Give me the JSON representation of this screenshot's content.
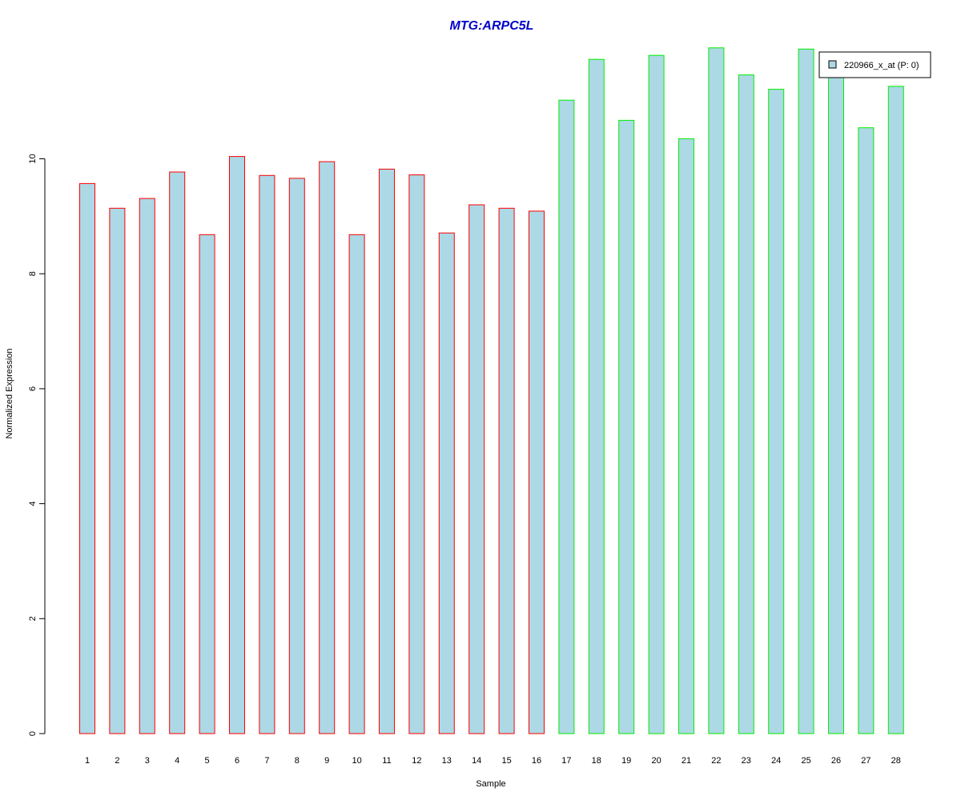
{
  "chart_data": {
    "type": "bar",
    "title": "MTG:ARPC5L",
    "xlabel": "Sample",
    "ylabel": "Normalized Expression",
    "ylim": [
      0,
      12
    ],
    "yticks": [
      0,
      2,
      4,
      6,
      8,
      10
    ],
    "categories": [
      "1",
      "2",
      "3",
      "4",
      "5",
      "6",
      "7",
      "8",
      "9",
      "10",
      "11",
      "12",
      "13",
      "14",
      "15",
      "16",
      "17",
      "18",
      "19",
      "20",
      "21",
      "22",
      "23",
      "24",
      "25",
      "26",
      "27",
      "28"
    ],
    "series": [
      {
        "name": "220966_x_at (P: 0)",
        "fill": "#add8e6",
        "values": [
          9.57,
          9.14,
          9.31,
          9.77,
          8.68,
          10.04,
          9.71,
          9.66,
          9.95,
          8.68,
          9.82,
          9.72,
          8.71,
          9.2,
          9.14,
          9.09,
          11.02,
          11.73,
          10.67,
          11.8,
          10.35,
          11.93,
          11.46,
          11.21,
          11.91,
          11.52,
          10.54,
          11.26
        ]
      }
    ],
    "groups": [
      {
        "border": "#ff0000",
        "from": 1,
        "to": 16
      },
      {
        "border": "#00ee00",
        "from": 17,
        "to": 28
      }
    ],
    "legend": {
      "position": "top-right",
      "label": "220966_x_at (P: 0)"
    },
    "grid": false
  }
}
